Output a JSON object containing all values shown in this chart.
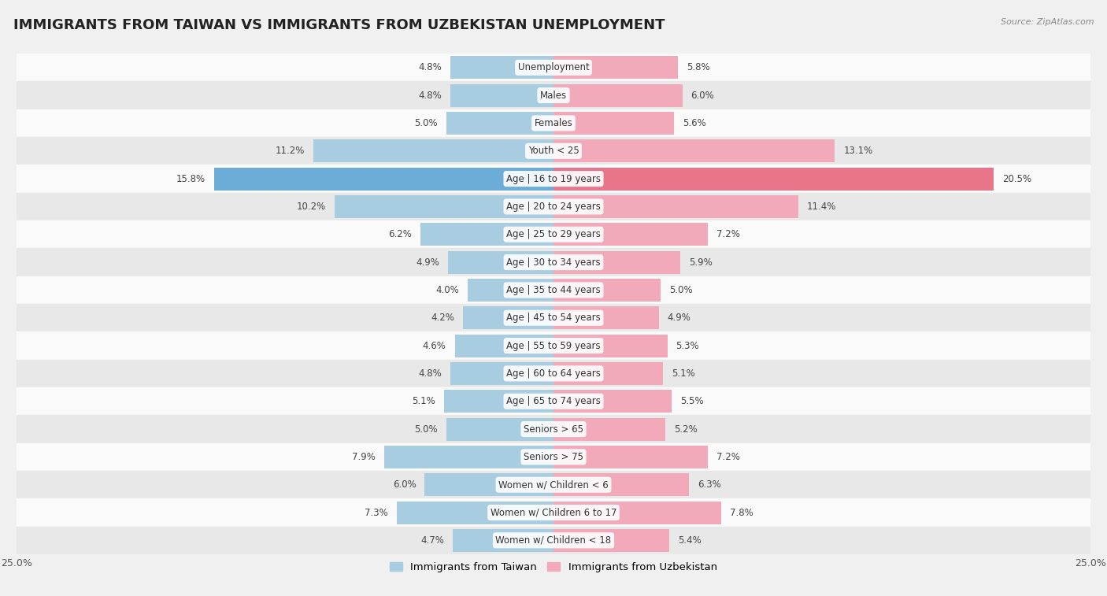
{
  "title": "IMMIGRANTS FROM TAIWAN VS IMMIGRANTS FROM UZBEKISTAN UNEMPLOYMENT",
  "source": "Source: ZipAtlas.com",
  "categories": [
    "Unemployment",
    "Males",
    "Females",
    "Youth < 25",
    "Age | 16 to 19 years",
    "Age | 20 to 24 years",
    "Age | 25 to 29 years",
    "Age | 30 to 34 years",
    "Age | 35 to 44 years",
    "Age | 45 to 54 years",
    "Age | 55 to 59 years",
    "Age | 60 to 64 years",
    "Age | 65 to 74 years",
    "Seniors > 65",
    "Seniors > 75",
    "Women w/ Children < 6",
    "Women w/ Children 6 to 17",
    "Women w/ Children < 18"
  ],
  "taiwan_values": [
    4.8,
    4.8,
    5.0,
    11.2,
    15.8,
    10.2,
    6.2,
    4.9,
    4.0,
    4.2,
    4.6,
    4.8,
    5.1,
    5.0,
    7.9,
    6.0,
    7.3,
    4.7
  ],
  "uzbekistan_values": [
    5.8,
    6.0,
    5.6,
    13.1,
    20.5,
    11.4,
    7.2,
    5.9,
    5.0,
    4.9,
    5.3,
    5.1,
    5.5,
    5.2,
    7.2,
    6.3,
    7.8,
    5.4
  ],
  "taiwan_color": "#A8CCE0",
  "uzbekistan_color": "#F2AABB",
  "taiwan_highlight_color": "#6BADD6",
  "uzbekistan_highlight_color": "#E8758A",
  "highlight_index": 4,
  "background_color": "#f0f0f0",
  "row_light_color": "#fafafa",
  "row_dark_color": "#e8e8e8",
  "xlim": 25.0,
  "legend_taiwan": "Immigrants from Taiwan",
  "legend_uzbekistan": "Immigrants from Uzbekistan",
  "bar_height": 0.82,
  "title_fontsize": 13,
  "label_fontsize": 8.5,
  "value_fontsize": 8.5
}
